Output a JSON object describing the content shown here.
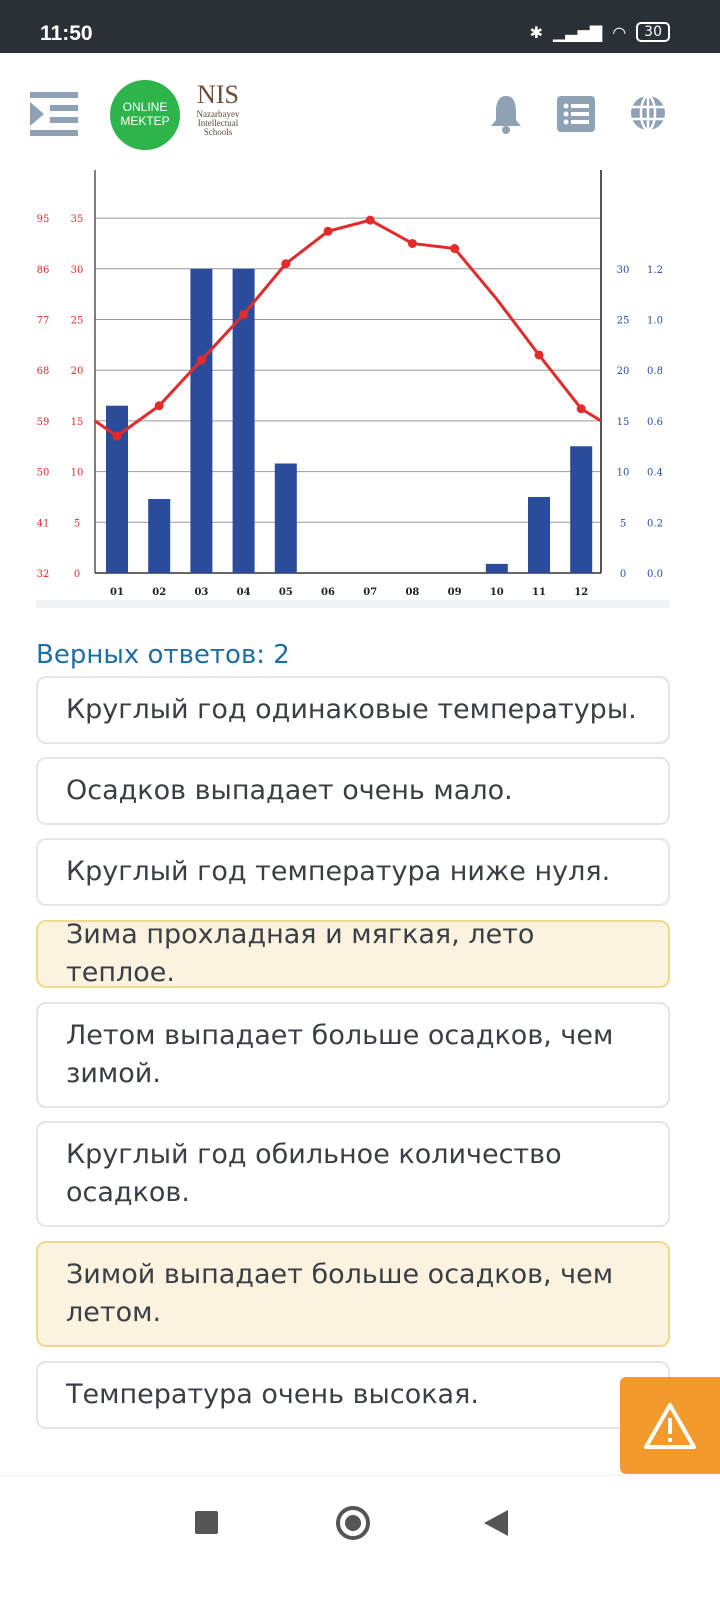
{
  "status_bar": {
    "time": "11:50",
    "battery": "30"
  },
  "header": {
    "logo_line1": "ONLINE",
    "logo_line2": "MEKTEP",
    "nis_title": "NIS",
    "nis_sub1": "Nazarbayev",
    "nis_sub2": "Intellectual",
    "nis_sub3": "Schools",
    "icons": [
      "menu-icon",
      "bell-icon",
      "list-icon",
      "globe-icon"
    ]
  },
  "chart_data": {
    "type": "bar+line",
    "categories": [
      "01",
      "02",
      "03",
      "04",
      "05",
      "06",
      "07",
      "08",
      "09",
      "10",
      "11",
      "12"
    ],
    "series": [
      {
        "type": "bar",
        "axis": "right",
        "values": [
          16.5,
          7.3,
          30,
          30,
          10.8,
          0,
          0,
          0,
          0,
          0.9,
          7.5,
          12.5
        ],
        "color": "#2b4c9b"
      },
      {
        "type": "line",
        "axis": "left",
        "values": [
          13.5,
          16.5,
          21,
          25.5,
          30.5,
          33.7,
          34.8,
          32.5,
          32,
          27,
          21.5,
          16.2
        ],
        "color": "#e32b2b"
      }
    ],
    "left_axis_celsius": {
      "ticks": [
        "0",
        "5",
        "10",
        "15",
        "20",
        "25",
        "30",
        "35"
      ],
      "range": [
        0,
        35
      ]
    },
    "left_axis_fahrenheit": {
      "ticks": [
        "32",
        "41",
        "50",
        "59",
        "68",
        "77",
        "86",
        "95"
      ]
    },
    "right_axis_mm": {
      "ticks": [
        "0",
        "5",
        "10",
        "15",
        "20",
        "25",
        "30"
      ]
    },
    "right_axis_inch": {
      "ticks": [
        "0.0",
        "0.2",
        "0.4",
        "0.6",
        "0.8",
        "1.0",
        "1.2"
      ]
    },
    "grid": true
  },
  "quiz": {
    "answers_label": "Верных ответов: 2",
    "options": [
      {
        "text": "Круглый год одинаковые температуры.",
        "selected": false
      },
      {
        "text": "Осадков выпадает очень мало.",
        "selected": false
      },
      {
        "text": "Круглый год температура ниже нуля.",
        "selected": false
      },
      {
        "text": "Зима прохладная и мягкая, лето теплое.",
        "selected": true
      },
      {
        "text": "Летом выпадает больше осадков, чем зимой.",
        "selected": false
      },
      {
        "text": "Круглый год обильное количество осадков.",
        "selected": false
      },
      {
        "text": "Зимой выпадает больше осадков, чем летом.",
        "selected": true
      },
      {
        "text": "Температура очень высокая.",
        "selected": false
      }
    ]
  },
  "colors": {
    "accent": "#1f6fa3",
    "selected_bg": "#fbf3e0",
    "warning": "#f39a2c"
  }
}
